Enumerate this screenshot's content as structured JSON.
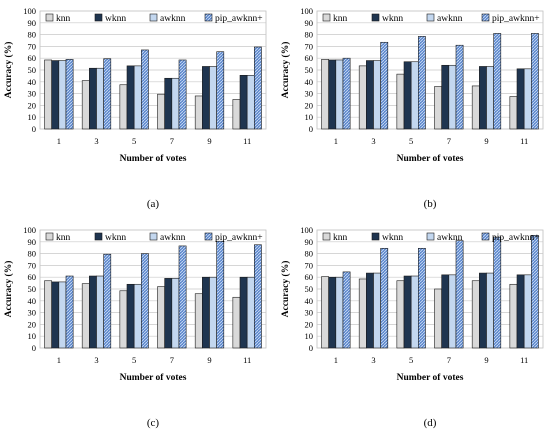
{
  "series_styles": [
    {
      "key": "knn",
      "fill": "#d9d9d9",
      "pattern": "none"
    },
    {
      "key": "wknn",
      "fill": "#1f3550",
      "pattern": "none"
    },
    {
      "key": "awknn",
      "fill": "#c3d7ef",
      "pattern": "none"
    },
    {
      "key": "pip_awknn+",
      "fill": "#4f7fc8",
      "pattern": "hatch"
    }
  ],
  "chart_data": [
    {
      "type": "bar",
      "caption": "(a)",
      "xlabel": "Number of votes",
      "ylabel": "Accuracy (%)",
      "ylim": [
        0,
        100
      ],
      "yticks": [
        0,
        10,
        20,
        30,
        40,
        50,
        60,
        70,
        80,
        90,
        100
      ],
      "grid": true,
      "legend_position": "top",
      "categories": [
        "1",
        "3",
        "5",
        "7",
        "9",
        "11"
      ],
      "series": [
        {
          "name": "knn",
          "values": [
            58.5,
            41,
            37.5,
            29.5,
            28,
            25
          ]
        },
        {
          "name": "wknn",
          "values": [
            58,
            51.5,
            53.5,
            43,
            53,
            45.5
          ]
        },
        {
          "name": "awknn",
          "values": [
            58,
            51.5,
            53.5,
            43,
            53,
            45.5
          ]
        },
        {
          "name": "pip_awknn+",
          "values": [
            59,
            59.5,
            67,
            58.5,
            65.5,
            69.5
          ]
        }
      ]
    },
    {
      "type": "bar",
      "caption": "(b)",
      "xlabel": "Number of votes",
      "ylabel": "Accuracy (%)",
      "ylim": [
        0,
        100
      ],
      "yticks": [
        0,
        10,
        20,
        30,
        40,
        50,
        60,
        70,
        80,
        90,
        100
      ],
      "grid": true,
      "legend_position": "top",
      "categories": [
        "1",
        "3",
        "5",
        "7",
        "9",
        "11"
      ],
      "series": [
        {
          "name": "knn",
          "values": [
            59,
            53.5,
            46.5,
            36,
            36.5,
            27.5
          ]
        },
        {
          "name": "wknn",
          "values": [
            58.5,
            58,
            57,
            54,
            53,
            51
          ]
        },
        {
          "name": "awknn",
          "values": [
            58.5,
            58,
            57,
            54,
            53,
            51
          ]
        },
        {
          "name": "pip_awknn+",
          "values": [
            60,
            73.5,
            78.5,
            71,
            81,
            81
          ]
        }
      ]
    },
    {
      "type": "bar",
      "caption": "(c)",
      "xlabel": "Number of votes",
      "ylabel": "Accuracy (%)",
      "ylim": [
        0,
        100
      ],
      "yticks": [
        0,
        10,
        20,
        30,
        40,
        50,
        60,
        70,
        80,
        90,
        100
      ],
      "grid": true,
      "legend_position": "top",
      "categories": [
        "1",
        "3",
        "5",
        "7",
        "9",
        "11"
      ],
      "series": [
        {
          "name": "knn",
          "values": [
            57,
            54.5,
            48.5,
            52,
            46,
            43
          ]
        },
        {
          "name": "wknn",
          "values": [
            56,
            61,
            54,
            59,
            60,
            60
          ]
        },
        {
          "name": "awknn",
          "values": [
            56,
            61,
            54,
            59,
            60,
            60
          ]
        },
        {
          "name": "pip_awknn+",
          "values": [
            61,
            79.5,
            80,
            86.5,
            90.5,
            87.5
          ]
        }
      ]
    },
    {
      "type": "bar",
      "caption": "(d)",
      "xlabel": "Number of votes",
      "ylabel": "Accuracy (%)",
      "ylim": [
        0,
        100
      ],
      "yticks": [
        0,
        10,
        20,
        30,
        40,
        50,
        60,
        70,
        80,
        90,
        100
      ],
      "grid": true,
      "legend_position": "top",
      "categories": [
        "1",
        "3",
        "5",
        "7",
        "9",
        "11"
      ],
      "series": [
        {
          "name": "knn",
          "values": [
            60.5,
            58.5,
            57,
            50,
            57,
            54
          ]
        },
        {
          "name": "wknn",
          "values": [
            60,
            63.5,
            61,
            62,
            63.5,
            62
          ]
        },
        {
          "name": "awknn",
          "values": [
            60,
            63.5,
            61,
            62,
            63.5,
            62
          ]
        },
        {
          "name": "pip_awknn+",
          "values": [
            64.5,
            84.5,
            84.5,
            91,
            94,
            95.5
          ]
        }
      ]
    }
  ]
}
